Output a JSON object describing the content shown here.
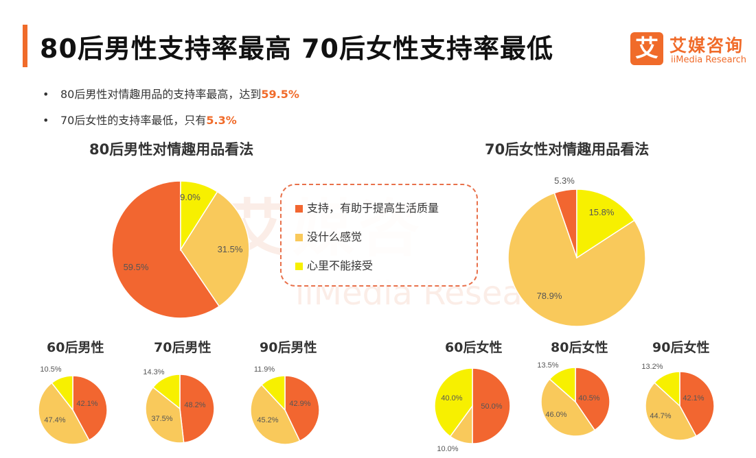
{
  "header": {
    "title": "80后男性支持率最高  70后女性支持率最低",
    "logo_glyph": "艾",
    "logo_cn": "艾媒咨询",
    "logo_en": "iiMedia Research"
  },
  "bullets": [
    {
      "dot": "•",
      "text": "80后男性对情趣用品的支持率最高，达到",
      "highlight": "59.5%"
    },
    {
      "dot": "•",
      "text": "70后女性的支持率最低，只有",
      "highlight": "5.3%"
    }
  ],
  "legend": {
    "items": [
      {
        "label": "支持，有助于提高生活质量",
        "color": "#f26630"
      },
      {
        "label": "没什么感觉",
        "color": "#f9c95b"
      },
      {
        "label": "心里不能接受",
        "color": "#f7f000"
      }
    ]
  },
  "watermark": {
    "cn": "艾媒咨",
    "en": "iiMedia Resea"
  },
  "colors": {
    "support": "#f26630",
    "neutral": "#f9c95b",
    "reject": "#f7f000",
    "accent": "#f06b2a"
  },
  "chart_data": [
    {
      "type": "pie",
      "title": "80后男性对情趣用品看法",
      "categories": [
        "支持，有助于提高生活质量",
        "没什么感觉",
        "心里不能接受"
      ],
      "values": [
        59.5,
        31.5,
        9.0
      ],
      "labels": [
        "59.5%",
        "31.5%",
        "9.0%"
      ]
    },
    {
      "type": "pie",
      "title": "70后女性对情趣用品看法",
      "categories": [
        "支持，有助于提高生活质量",
        "没什么感觉",
        "心里不能接受"
      ],
      "values": [
        5.3,
        78.9,
        15.8
      ],
      "labels": [
        "5.3%",
        "78.9%",
        "15.8%"
      ]
    },
    {
      "type": "pie",
      "title": "60后男性",
      "categories": [
        "支持，有助于提高生活质量",
        "没什么感觉",
        "心里不能接受"
      ],
      "values": [
        42.1,
        47.4,
        10.5
      ],
      "labels": [
        "42.1%",
        "47.4%",
        "10.5%"
      ]
    },
    {
      "type": "pie",
      "title": "70后男性",
      "categories": [
        "支持，有助于提高生活质量",
        "没什么感觉",
        "心里不能接受"
      ],
      "values": [
        48.2,
        37.5,
        14.3
      ],
      "labels": [
        "48.2%",
        "37.5%",
        "14.3%"
      ]
    },
    {
      "type": "pie",
      "title": "90后男性",
      "categories": [
        "支持，有助于提高生活质量",
        "没什么感觉",
        "心里不能接受"
      ],
      "values": [
        42.9,
        45.2,
        11.9
      ],
      "labels": [
        "42.9%",
        "45.2%",
        "11.9%"
      ]
    },
    {
      "type": "pie",
      "title": "60后女性",
      "categories": [
        "支持，有助于提高生活质量",
        "没什么感觉",
        "心里不能接受"
      ],
      "values": [
        50.0,
        10.0,
        40.0
      ],
      "labels": [
        "50.0%",
        "10.0%",
        "40.0%"
      ]
    },
    {
      "type": "pie",
      "title": "80后女性",
      "categories": [
        "支持，有助于提高生活质量",
        "没什么感觉",
        "心里不能接受"
      ],
      "values": [
        40.5,
        46.0,
        13.5
      ],
      "labels": [
        "40.5%",
        "46.0%",
        "13.5%"
      ]
    },
    {
      "type": "pie",
      "title": "90后女性",
      "categories": [
        "支持，有助于提高生活质量",
        "没什么感觉",
        "心里不能接受"
      ],
      "values": [
        42.1,
        44.7,
        13.2
      ],
      "labels": [
        "42.1%",
        "44.7%",
        "13.2%"
      ]
    }
  ]
}
